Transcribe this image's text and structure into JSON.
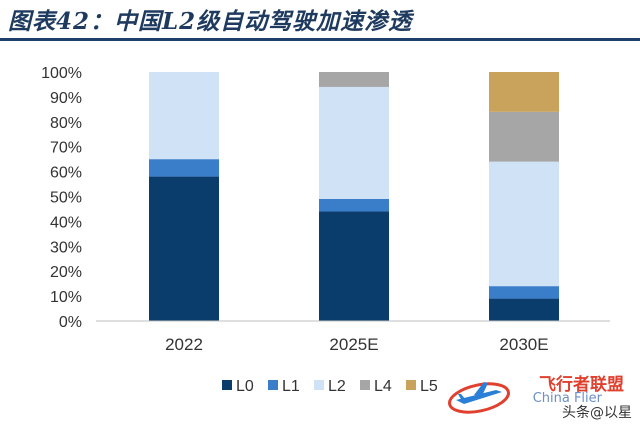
{
  "title": "图表42：中国L2级自动驾驶加速渗透",
  "chart_data": {
    "type": "bar",
    "stacked": true,
    "categories": [
      "2022",
      "2025E",
      "2030E"
    ],
    "series": [
      {
        "name": "L0",
        "color": "#0a3d6b",
        "values": [
          58,
          44,
          9
        ]
      },
      {
        "name": "L1",
        "color": "#3a7dc9",
        "values": [
          7,
          5,
          5
        ]
      },
      {
        "name": "L2",
        "color": "#cfe2f6",
        "values": [
          35,
          45,
          50
        ]
      },
      {
        "name": "L4",
        "color": "#a6a6a6",
        "values": [
          0,
          6,
          20
        ]
      },
      {
        "name": "L5",
        "color": "#c9a25b",
        "values": [
          0,
          0,
          16
        ]
      }
    ],
    "ylim": [
      0,
      100
    ],
    "yticks": [
      "0%",
      "10%",
      "20%",
      "30%",
      "40%",
      "50%",
      "60%",
      "70%",
      "80%",
      "90%",
      "100%"
    ],
    "legend_position": "bottom",
    "grid": false
  },
  "watermark": {
    "logo_text": "飞行者联盟",
    "sub_text": "China Flier",
    "author": "头条@以星"
  }
}
